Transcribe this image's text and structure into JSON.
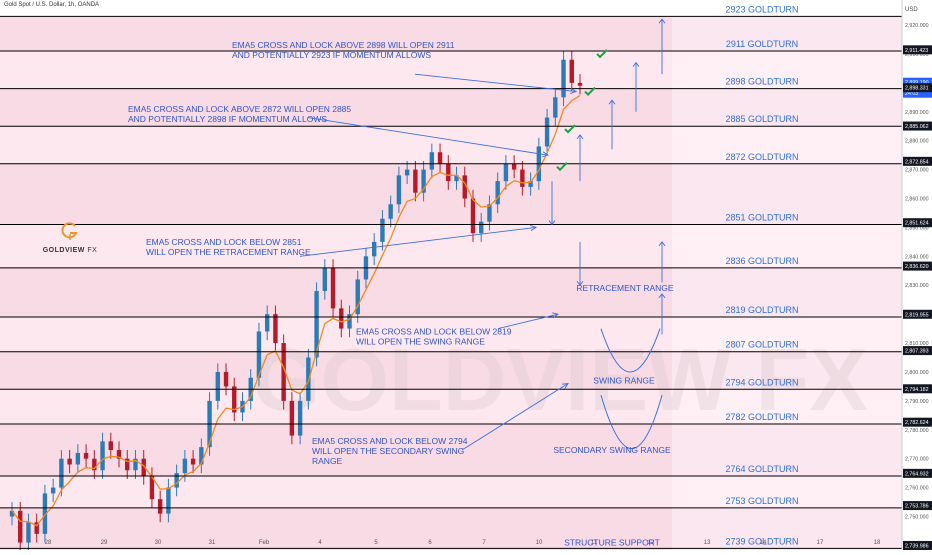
{
  "header": {
    "symbol_title": "Gold Spot / U.S. Dollar, 1h, OANDA",
    "currency": "USD"
  },
  "logo": {
    "brand_main": "GOLDVIEW",
    "brand_suffix": "FX",
    "watermark": "GOLDVIEW FX"
  },
  "colors": {
    "band": "#f9dbe6",
    "band_alt": "#fde8ef",
    "line": "#000000",
    "candle_up": "#2d7bb6",
    "candle_down": "#b51a2a",
    "ema": "#f08a1e",
    "annotation_text": "#3055c8",
    "level_text": "#2f6fd6",
    "check": "#18a33c",
    "arrow": "#3b6fe0"
  },
  "chart_data": {
    "type": "candlestick",
    "title": "Gold Spot / U.S. Dollar, 1h, OANDA",
    "ylabel": "USD",
    "ylim": [
      2744.3,
      2925.2
    ],
    "x_tick_labels": [
      "28",
      "29",
      "30",
      "31",
      "Feb",
      "4",
      "5",
      "6",
      "7",
      "10",
      "11",
      "12",
      "13",
      "14",
      "17",
      "18"
    ],
    "y_tick_labels": [
      "2,920.000",
      "2,910.000",
      "2,900.000",
      "2,890.000",
      "2,880.000",
      "2,870.000",
      "2,860.000",
      "2,850.000",
      "2,840.000",
      "2,830.000",
      "2,820.000",
      "2,810.000",
      "2,800.000",
      "2,790.000",
      "2,780.000",
      "2,770.000",
      "2,760.000",
      "2,750.000"
    ],
    "price_badges": [
      "2,911.423",
      "2,899.190",
      "24:03",
      "2,898.331",
      "2,885.062",
      "2,872.854",
      "2,851.624",
      "2,836.620",
      "2,819.955",
      "2,807.393",
      "2,794.182",
      "2,782.624",
      "2,764.932",
      "2,753.786",
      "2,739.986"
    ],
    "levels": [
      {
        "label": "2923 GOLDTURN",
        "price": 2923
      },
      {
        "label": "2911 GOLDTURN",
        "price": 2911
      },
      {
        "label": "2898 GOLDTURN",
        "price": 2898
      },
      {
        "label": "2885 GOLDTURN",
        "price": 2885
      },
      {
        "label": "2872 GOLDTURN",
        "price": 2872
      },
      {
        "label": "2851 GOLDTURN",
        "price": 2851
      },
      {
        "label": "2836 GOLDTURN",
        "price": 2836
      },
      {
        "label": "2819 GOLDTURN",
        "price": 2819
      },
      {
        "label": "2807 GOLDTURN",
        "price": 2807
      },
      {
        "label": "2794 GOLDTURN",
        "price": 2794
      },
      {
        "label": "2782 GOLDTURN",
        "price": 2782
      },
      {
        "label": "2764 GOLDTURN",
        "price": 2764
      },
      {
        "label": "2753 GOLDTURN",
        "price": 2753
      },
      {
        "label": "2739 GOLDTURN",
        "price": 2739
      }
    ],
    "annotations": [
      {
        "lines": [
          "EMA5 CROSS AND LOCK ABOVE 2898 WILL OPEN 2911",
          "AND POTENTIALLY 2923 IF MOMENTUM ALLOWS"
        ]
      },
      {
        "lines": [
          "EMA5 CROSS AND LOCK ABOVE 2872 WILL OPEN 2885",
          "AND POTENTIALLY 2898 IF MOMENTUM ALLOWS"
        ]
      },
      {
        "lines": [
          "EMA5 CROSS AND LOCK BELOW 2851",
          "WILL OPEN THE RETRACEMENT RANGE"
        ]
      },
      {
        "lines": [
          "EMA5 CROSS AND LOCK BELOW 2819",
          "WILL OPEN THE SWING RANGE"
        ]
      },
      {
        "lines": [
          "EMA5 CROSS AND LOCK BELOW 2794",
          "WILL OPEN THE SECONDARY SWING",
          "RANGE"
        ]
      }
    ],
    "zone_labels": [
      "RETRACEMENT RANGE",
      "SWING RANGE",
      "SECONDARY SWING RANGE",
      "STRUCTURE SUPPORT"
    ],
    "close_approx": [
      2752,
      2741,
      2748,
      2744,
      2758,
      2760,
      2770,
      2768,
      2772,
      2770,
      2766,
      2776,
      2773,
      2770,
      2766,
      2770,
      2764,
      2756,
      2751,
      2760,
      2765,
      2770,
      2768,
      2774,
      2790,
      2800,
      2795,
      2786,
      2790,
      2798,
      2814,
      2820,
      2810,
      2790,
      2778,
      2790,
      2805,
      2828,
      2836,
      2822,
      2815,
      2820,
      2832,
      2840,
      2845,
      2853,
      2858,
      2868,
      2870,
      2862,
      2870,
      2876,
      2872,
      2866,
      2868,
      2860,
      2848,
      2852,
      2858,
      2866,
      2872,
      2870,
      2864,
      2866,
      2878,
      2888,
      2895,
      2908,
      2900,
      2899
    ]
  }
}
